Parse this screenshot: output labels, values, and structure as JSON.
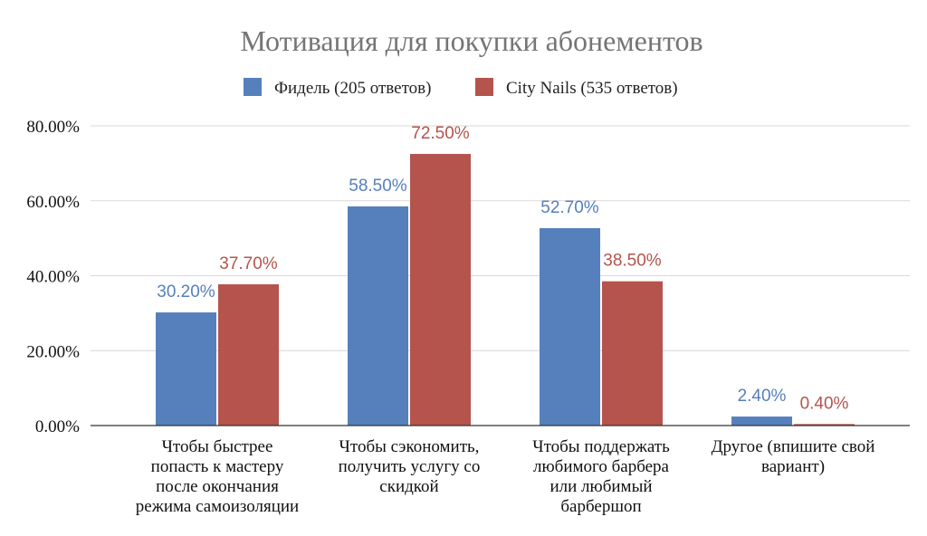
{
  "chart_data": {
    "type": "bar",
    "title": "Мотивация для покупки абонементов",
    "xlabel": "",
    "ylabel": "",
    "ylim": [
      0,
      80
    ],
    "y_ticks": [
      "0.00%",
      "20.00%",
      "40.00%",
      "60.00%",
      "80.00%"
    ],
    "y_tick_values": [
      0,
      20,
      40,
      60,
      80
    ],
    "grid": true,
    "legend_position": "top",
    "categories": [
      [
        "Чтобы быстрее",
        "попасть к мастеру",
        "после окончания",
        "режима самоизоляции"
      ],
      [
        "Чтобы сэкономить,",
        "получить услугу со",
        "скидкой"
      ],
      [
        "Чтобы поддержать",
        "любимого барбера",
        "или любимый",
        "барбершоп"
      ],
      [
        "Другое (впишите свой",
        "вариант)"
      ]
    ],
    "series": [
      {
        "name": "Фидель (205 ответов)",
        "color": "#5680bb",
        "values": [
          30.2,
          58.5,
          52.7,
          2.4
        ],
        "labels": [
          "30.20%",
          "58.50%",
          "52.70%",
          "2.40%"
        ]
      },
      {
        "name": "City Nails (535 ответов)",
        "color": "#b5534d",
        "values": [
          37.7,
          72.5,
          38.5,
          0.4
        ],
        "labels": [
          "37.70%",
          "72.50%",
          "38.50%",
          "0.40%"
        ]
      }
    ]
  }
}
